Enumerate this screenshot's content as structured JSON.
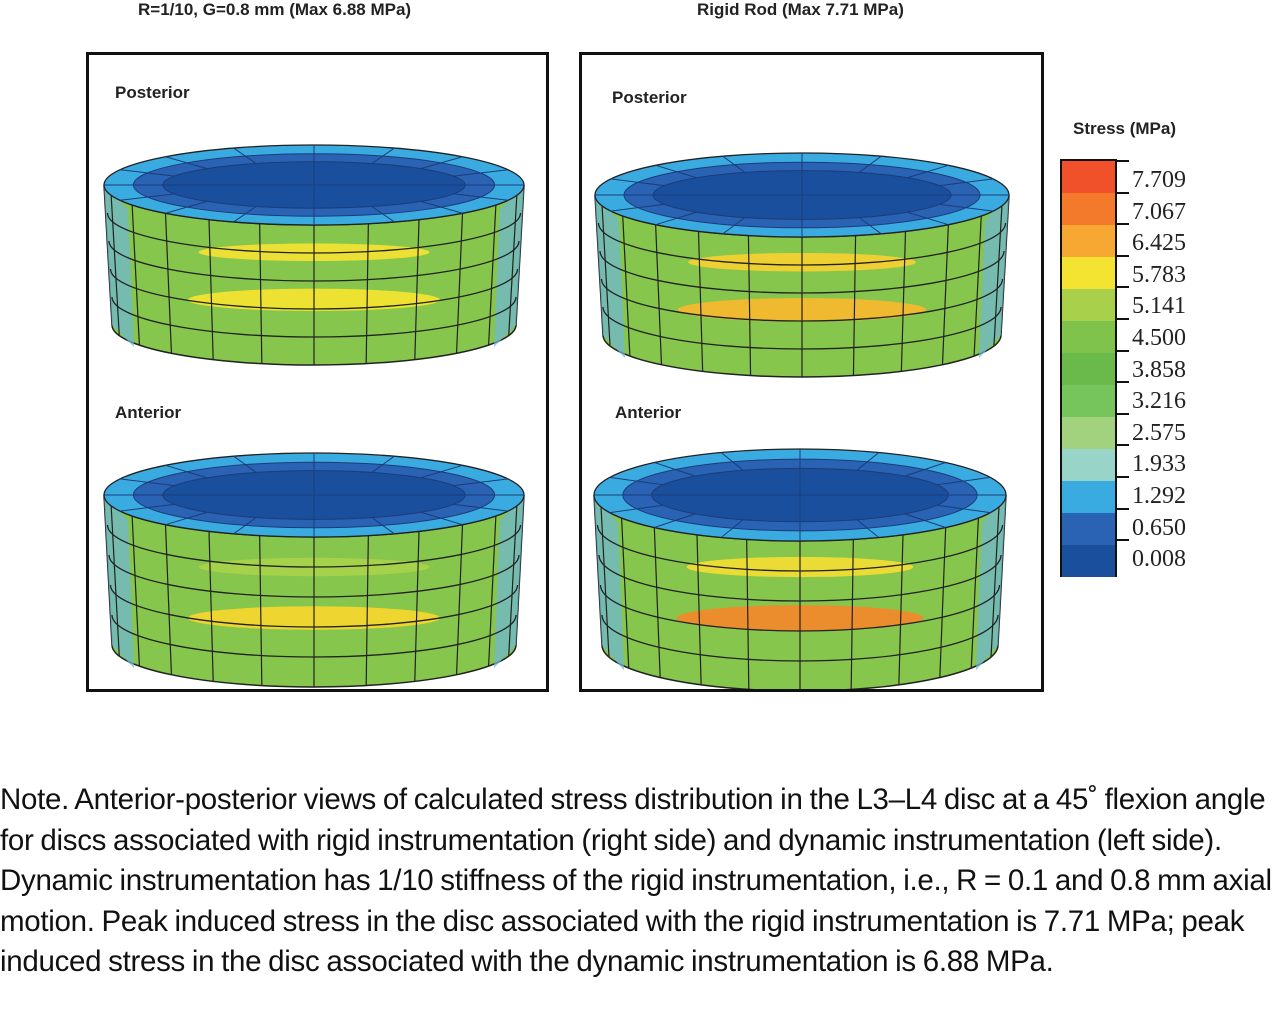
{
  "figure": {
    "left_panel": {
      "title": "R=1/10, G=0.8 mm (Max 6.88 MPa)",
      "top_view_label": "Posterior",
      "bottom_view_label": "Anterior",
      "top_band_colors": [
        "#f0e232",
        "#f2e430"
      ],
      "bottom_band_colors": [
        "#a8d24a",
        "#f4d62e"
      ]
    },
    "right_panel": {
      "title": "Rigid Rod (Max 7.71 MPa)",
      "top_view_label": "Posterior",
      "bottom_view_label": "Anterior",
      "top_band_colors": [
        "#f3d132",
        "#f4b82e"
      ],
      "bottom_band_colors": [
        "#efdc34",
        "#f08a2a"
      ]
    },
    "legend": {
      "title": "Stress (MPa)",
      "levels": [
        {
          "value": "7.709",
          "color": "#f0502a"
        },
        {
          "value": "7.067",
          "color": "#f37a2b"
        },
        {
          "value": "6.425",
          "color": "#f6a832"
        },
        {
          "value": "5.783",
          "color": "#f2e430"
        },
        {
          "value": "5.141",
          "color": "#a9d04a"
        },
        {
          "value": "4.500",
          "color": "#7fc24c"
        },
        {
          "value": "3.858",
          "color": "#69ba4b"
        },
        {
          "value": "3.216",
          "color": "#76c45c"
        },
        {
          "value": "2.575",
          "color": "#a2d27e"
        },
        {
          "value": "1.933",
          "color": "#98d4c8"
        },
        {
          "value": "1.292",
          "color": "#3aabe0"
        },
        {
          "value": "0.650",
          "color": "#2a62b4"
        },
        {
          "value": "0.008",
          "color": "#1a4f9e"
        }
      ]
    }
  },
  "caption": "Note. Anterior-posterior views of calculated stress distribution in the L3–L4 disc at a 45˚ flexion angle for discs associated with rigid instrumentation (right side) and dynamic instrumentation (left side). Dynamic instrumentation has 1/10 stiffness of the rigid instrumentation, i.e., R = 0.1 and 0.8 mm axial motion. Peak induced stress in the disc associated with the rigid instrumentation is 7.71 MPa; peak induced stress in the disc associated with the dynamic instrumentation is 6.88 MPa."
}
